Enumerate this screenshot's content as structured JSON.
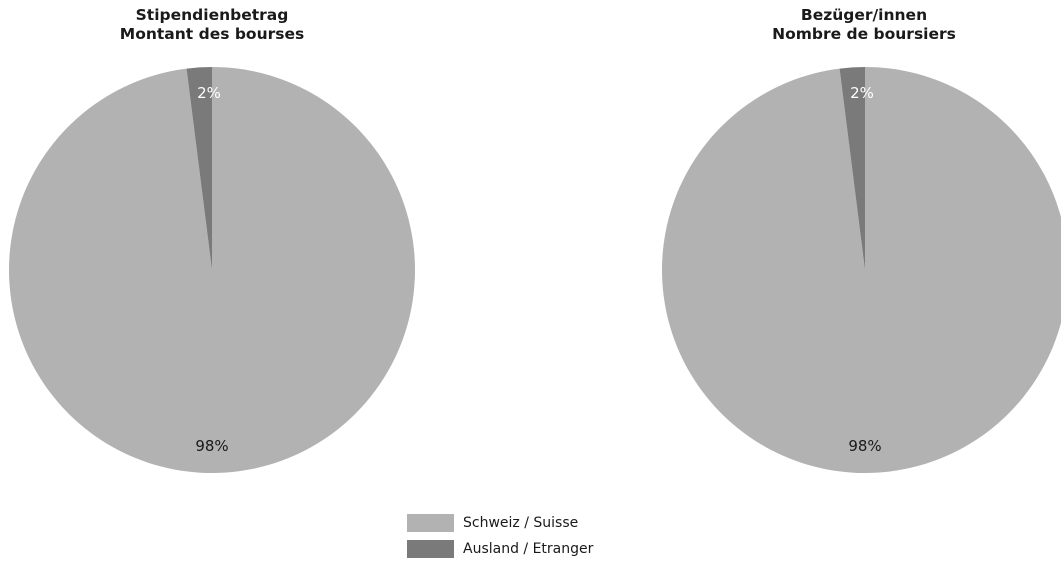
{
  "chart_data": [
    {
      "type": "pie",
      "title": "Stipendienbetrag",
      "subtitle": "Montant des bourses",
      "categories": [
        "Schweiz / Suisse",
        "Ausland / Etranger"
      ],
      "values": [
        98,
        2
      ],
      "data_labels": [
        "98%",
        "2%"
      ]
    },
    {
      "type": "pie",
      "title": "Bezüger/innen",
      "subtitle": "Nombre de boursiers",
      "categories": [
        "Schweiz / Suisse",
        "Ausland / Etranger"
      ],
      "values": [
        98,
        2
      ],
      "data_labels": [
        "98%",
        "2%"
      ]
    }
  ],
  "legend": {
    "position": "bottom-center",
    "items": [
      {
        "label": "Schweiz / Suisse",
        "color": "#b2b2b2"
      },
      {
        "label": "Ausland / Etranger",
        "color": "#7a7a7a"
      }
    ]
  },
  "colors": {
    "major": "#b2b2b2",
    "minor": "#7a7a7a",
    "small_label": "#ffffff",
    "large_label": "#1a1a1a"
  }
}
